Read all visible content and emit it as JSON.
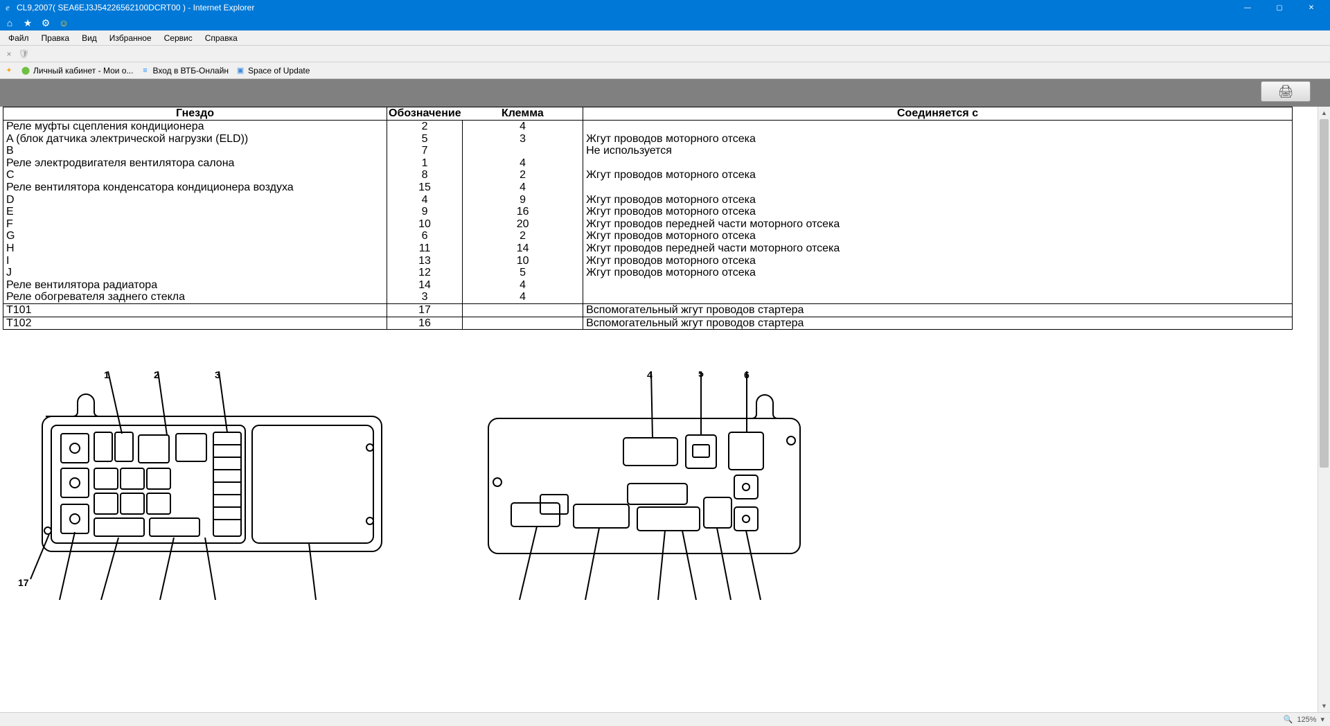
{
  "window": {
    "title": "CL9,2007( SEA6EJ3J54226562100DCRT00 ) - Internet Explorer",
    "min": "—",
    "max": "▢",
    "close": "✕"
  },
  "menubar": [
    "Файл",
    "Правка",
    "Вид",
    "Избранное",
    "Сервис",
    "Справка"
  ],
  "favorites": {
    "a": "Личный кабинет - Мои о...",
    "b": "Вход в ВТБ-Онлайн",
    "c": "Space of Update"
  },
  "table": {
    "headers": {
      "c1": "Гнездо",
      "c2": "Обозначение",
      "c3": "Клемма",
      "c4": "Соединяется с"
    },
    "rows": [
      {
        "g": "Реле муфты сцепления кондиционера",
        "o": "2",
        "k": "4",
        "s": ""
      },
      {
        "g": "A (блок датчика электрической нагрузки (ELD))",
        "o": "5",
        "k": "3",
        "s": "Жгут проводов моторного отсека"
      },
      {
        "g": "B",
        "o": "7",
        "k": "",
        "s": "Не используется"
      },
      {
        "g": "Реле электродвигателя вентилятора салона",
        "o": "1",
        "k": "4",
        "s": ""
      },
      {
        "g": "C",
        "o": "8",
        "k": "2",
        "s": "Жгут проводов моторного отсека"
      },
      {
        "g": "Реле вентилятора конденсатора кондиционера воздуха",
        "o": "15",
        "k": "4",
        "s": ""
      },
      {
        "g": "D",
        "o": "4",
        "k": "9",
        "s": "Жгут проводов моторного отсека"
      },
      {
        "g": "E",
        "o": "9",
        "k": "16",
        "s": "Жгут проводов моторного отсека"
      },
      {
        "g": "F",
        "o": "10",
        "k": "20",
        "s": "Жгут проводов передней части моторного отсека"
      },
      {
        "g": "G",
        "o": "6",
        "k": "2",
        "s": "Жгут проводов моторного отсека"
      },
      {
        "g": "H",
        "o": "11",
        "k": "14",
        "s": "Жгут проводов передней части моторного отсека"
      },
      {
        "g": "I",
        "o": "13",
        "k": "10",
        "s": "Жгут проводов моторного отсека"
      },
      {
        "g": "J",
        "o": "12",
        "k": "5",
        "s": "Жгут проводов моторного отсека"
      },
      {
        "g": "Реле вентилятора радиатора",
        "o": "14",
        "k": "4",
        "s": ""
      },
      {
        "g": "Реле обогревателя заднего стекла",
        "o": "3",
        "k": "4",
        "s": ""
      }
    ],
    "sep_rows": [
      {
        "g": "T101",
        "o": "17",
        "k": "",
        "s": "Вспомогательный жгут проводов стартера"
      },
      {
        "g": "T102",
        "o": "16",
        "k": "",
        "s": "Вспомогательный жгут проводов стартера"
      }
    ]
  },
  "diagram": {
    "labels_top_left": [
      "1",
      "2",
      "3"
    ],
    "labels_top_right": [
      "4",
      "5",
      "6"
    ],
    "label_bottom_left": "17",
    "stroke": "#000000",
    "stroke_width": 2,
    "fill": "#ffffff",
    "font_size": 14
  },
  "status": {
    "zoom": "125%",
    "arrow": "▾"
  }
}
